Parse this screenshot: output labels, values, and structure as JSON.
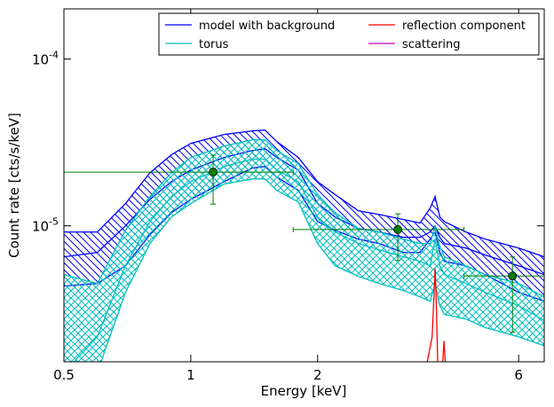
{
  "chart_data": {
    "type": "line",
    "xlabel": "Energy [keV]",
    "ylabel": "Count rate [cts/s/keV]",
    "xlog": true,
    "ylog": true,
    "xlim": [
      0.5,
      6.9
    ],
    "ylim": [
      1.53e-06,
      0.0002
    ],
    "xticks": [
      0.5,
      1,
      2,
      6
    ],
    "yticks": [
      {
        "value": 0.0001,
        "label": "10^-4"
      },
      {
        "value": 1e-05,
        "label": "10^-5"
      }
    ],
    "legend": "upper right",
    "legend_columns": 2,
    "x": [
      0.5,
      0.6,
      0.7,
      0.8,
      0.9,
      1.0,
      1.2,
      1.4,
      1.5,
      1.6,
      1.8,
      2.0,
      2.2,
      2.5,
      2.8,
      3.2,
      3.5,
      3.7,
      3.8,
      3.9,
      4.0,
      4.5,
      5.0,
      6.0,
      6.9
    ],
    "series": [
      {
        "name": "model with background",
        "color": "#0000ff",
        "hatch": "diagonal",
        "values": [
          6.52e-06,
          6.92e-06,
          1e-05,
          1.44e-05,
          1.84e-05,
          2.16e-05,
          2.57e-05,
          2.83e-05,
          2.9e-05,
          2.57e-05,
          2.16e-05,
          1.36e-05,
          1.13e-05,
          9.64e-06,
          9.18e-06,
          8.53e-06,
          8.53e-06,
          9.18e-06,
          1e-05,
          8.53e-06,
          7.83e-06,
          7.36e-06,
          6.68e-06,
          5.76e-06,
          5.1e-06
        ],
        "upper": [
          9.18e-06,
          9.18e-06,
          1.36e-05,
          2.08e-05,
          2.67e-05,
          3.12e-05,
          3.53e-05,
          3.71e-05,
          3.75e-05,
          3.2e-05,
          2.57e-05,
          1.84e-05,
          1.54e-05,
          1.23e-05,
          1.17e-05,
          1.09e-05,
          1.04e-05,
          1.28e-05,
          1.5e-05,
          1.13e-05,
          1.06e-05,
          9.18e-06,
          8.32e-06,
          7.36e-06,
          6.52e-06
        ],
        "lower": [
          4.35e-06,
          4.51e-06,
          5.76e-06,
          8.85e-06,
          1.2e-05,
          1.44e-05,
          1.84e-05,
          2.22e-05,
          2.27e-05,
          1.96e-05,
          1.63e-05,
          1.06e-05,
          9.4e-06,
          8.32e-06,
          7.83e-06,
          6.92e-06,
          6.92e-06,
          8.32e-06,
          9.18e-06,
          6.92e-06,
          6.12e-06,
          5.76e-06,
          5.1e-06,
          3.99e-06,
          3.53e-06
        ]
      },
      {
        "name": "torus",
        "color": "#00bfbf",
        "hatch": "cross",
        "values": [
          1.32e-06,
          2.16e-06,
          5.76e-06,
          1.06e-05,
          1.5e-05,
          1.84e-05,
          2.27e-05,
          2.51e-05,
          2.51e-05,
          2.16e-05,
          1.84e-05,
          1.13e-05,
          9.18e-06,
          7.83e-06,
          7.18e-06,
          6.52e-06,
          6.12e-06,
          5.76e-06,
          8.32e-06,
          5.76e-06,
          5.1e-06,
          4.51e-06,
          3.99e-06,
          3.32e-06,
          2.7e-06
        ],
        "upper": [
          5.1e-06,
          4.51e-06,
          9.4e-06,
          1.5e-05,
          2.08e-05,
          2.57e-05,
          3.01e-05,
          3.28e-05,
          3.28e-05,
          2.83e-05,
          2.36e-05,
          1.54e-05,
          1.2e-05,
          9.64e-06,
          9.18e-06,
          8.32e-06,
          7.83e-06,
          7.83e-06,
          1e-05,
          7.55e-06,
          6.52e-06,
          5.76e-06,
          5.1e-06,
          4.51e-06,
          3.75e-06
        ],
        "lower": [
          1.32e-06,
          1.32e-06,
          3.99e-06,
          7.83e-06,
          1.13e-05,
          1.36e-05,
          1.78e-05,
          1.91e-05,
          1.91e-05,
          1.63e-05,
          1.39e-05,
          7.83e-06,
          5.76e-06,
          4.98e-06,
          4.51e-06,
          4.09e-06,
          3.75e-06,
          3.53e-06,
          4.51e-06,
          3.32e-06,
          2.94e-06,
          2.76e-06,
          2.45e-06,
          2.16e-06,
          1.91e-06
        ]
      },
      {
        "name": "reflection component",
        "color": "#ff0000",
        "x": [
          3.6,
          3.74,
          3.78,
          3.8,
          3.82,
          3.86,
          3.95,
          3.99,
          4.03,
          4.1
        ],
        "values": [
          1.32e-06,
          2.16e-06,
          3.99e-06,
          5.56e-06,
          3.99e-06,
          1.32e-06,
          1.32e-06,
          2.04e-06,
          1.32e-06,
          1.32e-06
        ]
      },
      {
        "name": "scattering",
        "color": "#bf00bf"
      }
    ],
    "points": {
      "color": "#007f00",
      "x": [
        1.13,
        3.1,
        5.8
      ],
      "values": [
        2.1e-05,
        9.5e-06,
        5e-06
      ],
      "xlow": [
        0.5,
        1.75,
        4.45
      ],
      "xhigh": [
        1.75,
        4.45,
        6.9
      ],
      "ylow": [
        1.35e-05,
        6.2e-06,
        2.3e-06
      ],
      "yhigh": [
        2.65e-05,
        1.18e-05,
        6.5e-06
      ]
    }
  }
}
